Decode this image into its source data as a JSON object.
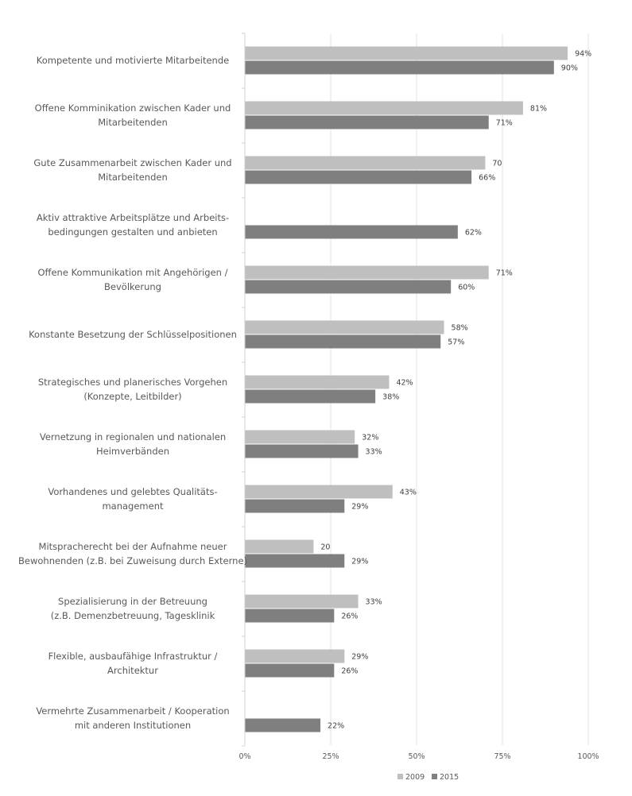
{
  "chart_data": {
    "type": "bar",
    "orientation": "horizontal",
    "categories": [
      [
        "Kompetente und motivierte Mitarbeitende"
      ],
      [
        "Offene Komminikation zwischen Kader und",
        "Mitarbeitenden"
      ],
      [
        "Gute Zusammenarbeit zwischen Kader und",
        "Mitarbeitenden"
      ],
      [
        "Aktiv attraktive Arbeitsplätze und Arbeits-",
        "bedingungen gestalten und anbieten"
      ],
      [
        "Offene Kommunikation mit Angehörigen /",
        "Bevölkerung"
      ],
      [
        "Konstante Besetzung der Schlüsselpositionen"
      ],
      [
        "Strategisches und planerisches Vorgehen",
        "(Konzepte, Leitbilder)"
      ],
      [
        "Vernetzung in regionalen und nationalen",
        "Heimverbänden"
      ],
      [
        "Vorhandenes und gelebtes Qualitäts-",
        "management"
      ],
      [
        "Mitspracherecht bei der Aufnahme neuer",
        "Bewohnenden (z.B. bei Zuweisung durch Externe)"
      ],
      [
        "Spezialisierung in der Betreuung",
        "(z.B. Demenzbetreuung, Tagesklinik"
      ],
      [
        "Flexible, ausbaufähige Infrastruktur /",
        "Architektur"
      ],
      [
        "Vermehrte Zusammenarbeit / Kooperation",
        "mit anderen Institutionen"
      ]
    ],
    "series": [
      {
        "name": "2009",
        "color": "#bfbfbf",
        "values": [
          94,
          81,
          70,
          null,
          71,
          58,
          42,
          32,
          43,
          20,
          33,
          29,
          null
        ],
        "labels": [
          "94%",
          "81%",
          "70",
          "",
          "71%",
          "58%",
          "42%",
          "32%",
          "43%",
          "20",
          "33%",
          "29%",
          ""
        ]
      },
      {
        "name": "2015",
        "color": "#7f7f7f",
        "values": [
          90,
          71,
          66,
          62,
          60,
          57,
          38,
          33,
          29,
          29,
          26,
          26,
          22
        ],
        "labels": [
          "90%",
          "71%",
          "66%",
          "62%",
          "60%",
          "57%",
          "38%",
          "33%",
          "29%",
          "29%",
          "26%",
          "26%",
          "22%"
        ]
      }
    ],
    "xlim": [
      0,
      100
    ],
    "xticks": [
      0,
      25,
      50,
      75,
      100
    ],
    "xtick_labels": [
      "0%",
      "25%",
      "50%",
      "75%",
      "100%"
    ],
    "grid": "vertical",
    "legend": "bottom",
    "title": "",
    "xlabel": "",
    "ylabel": ""
  }
}
